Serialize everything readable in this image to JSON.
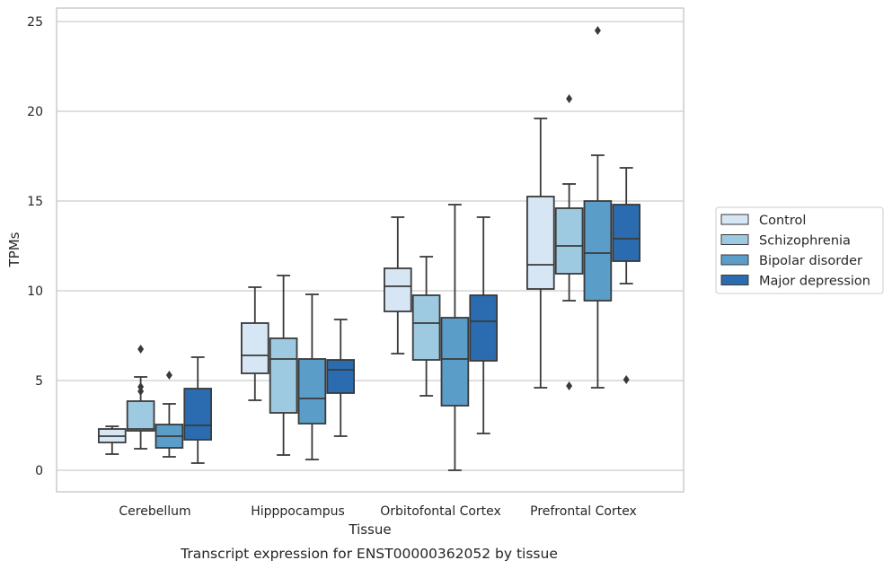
{
  "chart_data": {
    "type": "box",
    "caption": "Transcript expression for ENST00000362052 by tissue",
    "xlabel": "Tissue",
    "ylabel": "TPMs",
    "ylim": [
      -1.2,
      25.8
    ],
    "yticks": [
      "0",
      "5",
      "10",
      "15",
      "20",
      "25"
    ],
    "categories": [
      "Cerebellum",
      "Hipppocampus",
      "Orbitofontal Cortex",
      "Prefrontal Cortex"
    ],
    "grid": "horizontal",
    "legend_position": "right",
    "series": [
      {
        "name": "Control",
        "color": "#d6e6f4",
        "boxes": [
          {
            "whisker_low": 0.9,
            "q1": 1.55,
            "median": 1.9,
            "q3": 2.3,
            "whisker_high": 2.45,
            "outliers": []
          },
          {
            "whisker_low": 3.9,
            "q1": 5.4,
            "median": 6.4,
            "q3": 8.2,
            "whisker_high": 10.2,
            "outliers": []
          },
          {
            "whisker_low": 6.5,
            "q1": 8.85,
            "median": 10.25,
            "q3": 11.25,
            "whisker_high": 14.1,
            "outliers": []
          },
          {
            "whisker_low": 4.6,
            "q1": 10.1,
            "median": 11.45,
            "q3": 15.25,
            "whisker_high": 19.6,
            "outliers": []
          }
        ]
      },
      {
        "name": "Schizophrenia",
        "color": "#9ecae1",
        "boxes": [
          {
            "whisker_low": 1.2,
            "q1": 2.2,
            "median": 2.3,
            "q3": 3.85,
            "whisker_high": 5.2,
            "outliers": [
              6.75,
              4.65,
              4.4
            ]
          },
          {
            "whisker_low": 0.85,
            "q1": 3.2,
            "median": 6.2,
            "q3": 7.35,
            "whisker_high": 10.85,
            "outliers": []
          },
          {
            "whisker_low": 4.15,
            "q1": 6.15,
            "median": 8.2,
            "q3": 9.75,
            "whisker_high": 11.9,
            "outliers": []
          },
          {
            "whisker_low": 9.45,
            "q1": 10.95,
            "median": 12.5,
            "q3": 14.6,
            "whisker_high": 15.95,
            "outliers": [
              20.7,
              4.7
            ]
          }
        ]
      },
      {
        "name": "Bipolar disorder",
        "color": "#5b9dc9",
        "boxes": [
          {
            "whisker_low": 0.75,
            "q1": 1.25,
            "median": 1.9,
            "q3": 2.55,
            "whisker_high": 3.7,
            "outliers": [
              5.3
            ]
          },
          {
            "whisker_low": 0.6,
            "q1": 2.6,
            "median": 4.0,
            "q3": 6.2,
            "whisker_high": 9.8,
            "outliers": []
          },
          {
            "whisker_low": 0.0,
            "q1": 3.6,
            "median": 6.2,
            "q3": 8.5,
            "whisker_high": 14.8,
            "outliers": []
          },
          {
            "whisker_low": 4.6,
            "q1": 9.45,
            "median": 12.1,
            "q3": 15.0,
            "whisker_high": 17.55,
            "outliers": [
              24.5
            ]
          }
        ]
      },
      {
        "name": "Major depression",
        "color": "#2b6cb0",
        "boxes": [
          {
            "whisker_low": 0.4,
            "q1": 1.7,
            "median": 2.5,
            "q3": 4.55,
            "whisker_high": 6.3,
            "outliers": []
          },
          {
            "whisker_low": 1.9,
            "q1": 4.3,
            "median": 5.6,
            "q3": 6.15,
            "whisker_high": 8.4,
            "outliers": []
          },
          {
            "whisker_low": 2.05,
            "q1": 6.1,
            "median": 8.3,
            "q3": 9.75,
            "whisker_high": 14.1,
            "outliers": []
          },
          {
            "whisker_low": 10.4,
            "q1": 11.65,
            "median": 12.9,
            "q3": 14.8,
            "whisker_high": 16.85,
            "outliers": [
              5.05
            ]
          }
        ]
      }
    ]
  }
}
